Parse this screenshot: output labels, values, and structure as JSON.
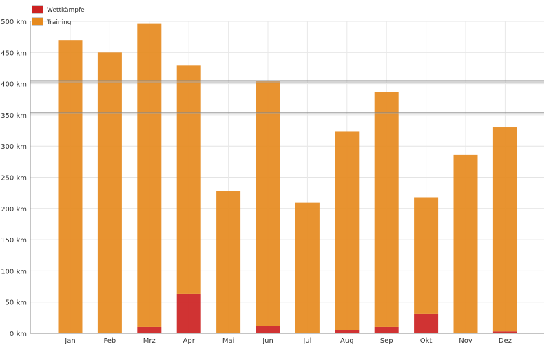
{
  "chart_data": {
    "type": "bar",
    "stacked": true,
    "title": "",
    "xlabel": "",
    "ylabel": "",
    "unit": "km",
    "ylim": [
      0,
      500
    ],
    "yticks": [
      0,
      50,
      100,
      150,
      200,
      250,
      300,
      350,
      400,
      450,
      500
    ],
    "ytick_labels": [
      "0 km",
      "50 km",
      "100 km",
      "150 km",
      "200 km",
      "250 km",
      "300 km",
      "350 km",
      "400 km",
      "450 km",
      "500 km"
    ],
    "grid": true,
    "legend_position": "top-left",
    "categories": [
      "Jan",
      "Feb",
      "Mrz",
      "Apr",
      "Mai",
      "Jun",
      "Jul",
      "Aug",
      "Sep",
      "Okt",
      "Nov",
      "Dez"
    ],
    "series": [
      {
        "name": "Wettkämpfe",
        "color": "#cc2222",
        "values": [
          0,
          0,
          10,
          63,
          0,
          12,
          0,
          5,
          10,
          31,
          0,
          3
        ]
      },
      {
        "name": "Training",
        "color": "#e68a1e",
        "values": [
          470,
          450,
          486,
          366,
          228,
          393,
          209,
          319,
          377,
          187,
          286,
          327
        ]
      }
    ],
    "reference_lines": [
      404,
      353
    ]
  }
}
